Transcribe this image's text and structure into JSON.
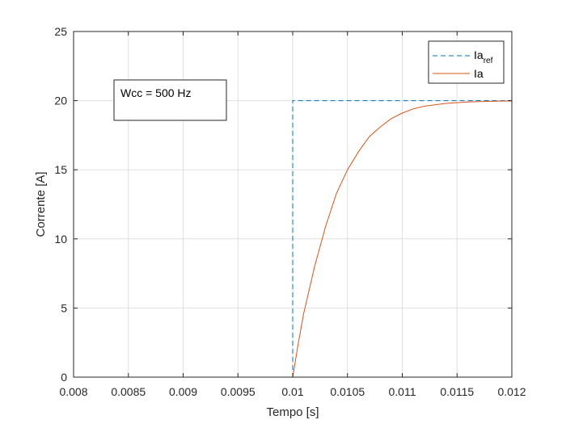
{
  "chart_data": {
    "type": "line",
    "title": "",
    "xlabel": "Tempo [s]",
    "ylabel": "Corrente [A]",
    "xlim": [
      0.008,
      0.012
    ],
    "ylim": [
      0,
      25
    ],
    "xticks": [
      0.008,
      0.0085,
      0.009,
      0.0095,
      0.01,
      0.0105,
      0.011,
      0.0115,
      0.012
    ],
    "xtick_labels": [
      "0.008",
      "0.0085",
      "0.009",
      "0.0095",
      "0.01",
      "0.0105",
      "0.011",
      "0.0115",
      "0.012"
    ],
    "yticks": [
      0,
      5,
      10,
      15,
      20,
      25
    ],
    "ytick_labels": [
      "0",
      "5",
      "10",
      "15",
      "20",
      "25"
    ],
    "grid": true,
    "legend_position": "top-right",
    "series": [
      {
        "name": "Ia",
        "name_subscript": "ref",
        "style": "dashed",
        "color": "#0072BD",
        "x": [
          0.008,
          0.01,
          0.01,
          0.012
        ],
        "y": [
          0,
          0,
          20,
          20
        ]
      },
      {
        "name": "Ia",
        "style": "solid",
        "color": "#D95319",
        "x": [
          0.008,
          0.01,
          0.01005,
          0.0101,
          0.0102,
          0.0103,
          0.0104,
          0.0105,
          0.0106,
          0.0107,
          0.0108,
          0.0109,
          0.011,
          0.0111,
          0.0112,
          0.0113,
          0.0114,
          0.0115,
          0.0116,
          0.0117,
          0.0118,
          0.0119,
          0.012
        ],
        "y": [
          0,
          0,
          2.4,
          4.6,
          8.0,
          10.9,
          13.3,
          15.0,
          16.3,
          17.4,
          18.1,
          18.7,
          19.1,
          19.4,
          19.6,
          19.7,
          19.8,
          19.85,
          19.9,
          19.93,
          19.95,
          19.97,
          19.98
        ]
      }
    ],
    "annotation": "Wcc = 500 Hz"
  }
}
